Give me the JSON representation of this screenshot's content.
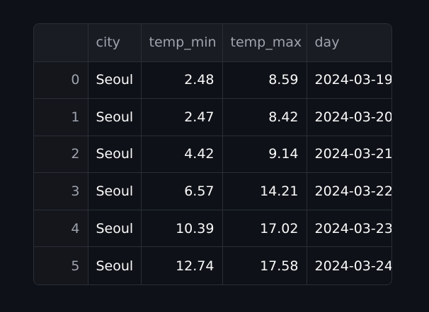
{
  "table": {
    "columns": [
      "",
      "city",
      "temp_min",
      "temp_max",
      "day"
    ],
    "rows": [
      {
        "index": "0",
        "city": "Seoul",
        "temp_min": "2.48",
        "temp_max": "8.59",
        "day": "2024-03-19"
      },
      {
        "index": "1",
        "city": "Seoul",
        "temp_min": "2.47",
        "temp_max": "8.42",
        "day": "2024-03-20"
      },
      {
        "index": "2",
        "city": "Seoul",
        "temp_min": "4.42",
        "temp_max": "9.14",
        "day": "2024-03-21"
      },
      {
        "index": "3",
        "city": "Seoul",
        "temp_min": "6.57",
        "temp_max": "14.21",
        "day": "2024-03-22"
      },
      {
        "index": "4",
        "city": "Seoul",
        "temp_min": "10.39",
        "temp_max": "17.02",
        "day": "2024-03-23"
      },
      {
        "index": "5",
        "city": "Seoul",
        "temp_min": "12.74",
        "temp_max": "17.58",
        "day": "2024-03-24"
      }
    ]
  }
}
